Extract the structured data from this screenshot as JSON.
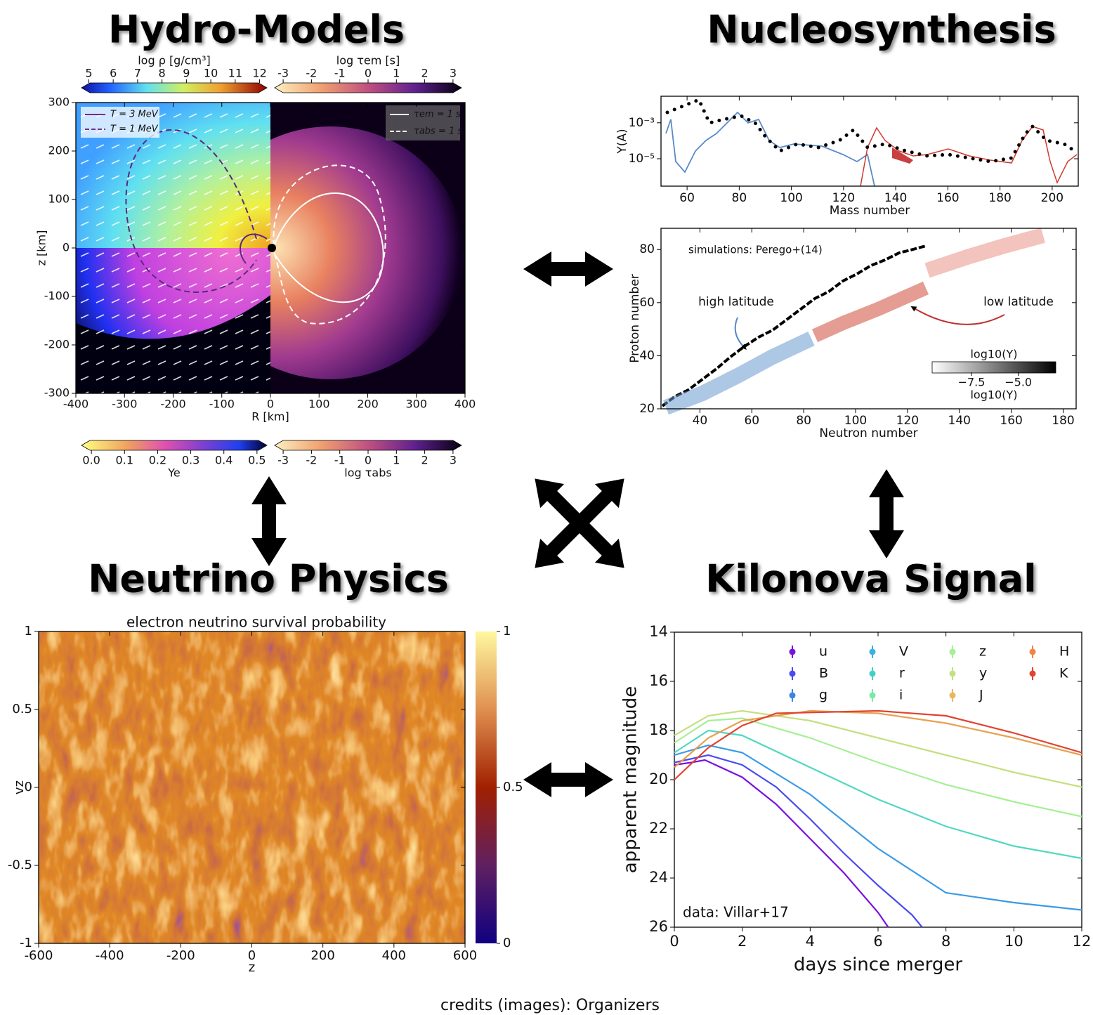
{
  "headings": {
    "hydro": "Hydro-Models",
    "nucleo": "Nucleosynthesis",
    "neutrino": "Neutrino Physics",
    "kilonova": "Kilonova Signal"
  },
  "credits": "credits (images): Organizers",
  "hydro": {
    "xlabel": "R [km]",
    "ylabel": "z [km]",
    "xlim": [
      -400,
      400
    ],
    "xticks": [
      -400,
      -300,
      -200,
      -100,
      0,
      100,
      200,
      300,
      400
    ],
    "ylim": [
      -300,
      300
    ],
    "yticks": [
      -300,
      -200,
      -100,
      0,
      100,
      200,
      300
    ],
    "legend": [
      "T = 3 MeV",
      "T = 1 MeV"
    ],
    "legend2": [
      "τem = 1 s",
      "τabs = 1 s"
    ],
    "colorbars": [
      {
        "label": "log ρ [g/cm³]",
        "lim": [
          4.7,
          12.3
        ],
        "ticks": [
          5,
          6,
          7,
          8,
          9,
          10,
          11,
          12
        ]
      },
      {
        "label": "log τem [s]",
        "lim": [
          -3.3,
          3.3
        ],
        "ticks": [
          -3,
          -2,
          -1,
          0,
          1,
          2,
          3
        ]
      },
      {
        "label": "Ye",
        "lim": [
          -0.03,
          0.53
        ],
        "ticks": [
          {
            "value": 0,
            "label": "0.0"
          },
          0.1,
          0.2,
          0.3,
          0.4,
          0.5
        ]
      },
      {
        "label": "log τabs",
        "lim": [
          -3.3,
          3.3
        ],
        "ticks": [
          -3,
          -2,
          -1,
          0,
          1,
          2,
          3
        ]
      }
    ]
  },
  "nucleo_top": {
    "xlabel": "Mass number",
    "ylabel": "Y(A)",
    "xlim": [
      50,
      210
    ],
    "xticks": [
      60,
      80,
      100,
      120,
      140,
      160,
      180,
      200
    ],
    "ylim": [
      3e-07,
      0.03
    ],
    "ylog": true,
    "yticks": [
      {
        "value": 0.001,
        "label": "10⁻³"
      },
      {
        "value": 1e-05,
        "label": "10⁻⁵"
      }
    ]
  },
  "nucleo_bottom": {
    "xlabel": "Neutron number",
    "ylabel": "Proton number",
    "xlim": [
      25,
      185
    ],
    "xticks": [
      40,
      60,
      80,
      100,
      120,
      140,
      160,
      180
    ],
    "ylim": [
      20,
      88
    ],
    "yticks": [
      20,
      40,
      60,
      80
    ],
    "annotations": [
      "simulations: Perego+(14)",
      "high latitude",
      "low latitude"
    ],
    "colorbar": {
      "label": "log10(Y)",
      "lim": [
        -9.6,
        -3
      ],
      "ticks": [
        {
          "value": -7.5,
          "label": "−7.5"
        },
        {
          "value": -5,
          "label": "−5.0"
        }
      ]
    }
  },
  "neutrino": {
    "title": "electron neutrino survival probability",
    "xlabel": "z",
    "ylabel": "vz",
    "xlim": [
      -600,
      600
    ],
    "xticks": [
      -600,
      -400,
      -200,
      0,
      200,
      400,
      600
    ],
    "ylim": [
      -1,
      1
    ],
    "yticks": [
      -1,
      -0.5,
      0,
      0.5,
      1
    ],
    "colorbar": {
      "lim": [
        0,
        1
      ],
      "ticks": [
        0,
        0.5,
        1
      ]
    }
  },
  "kilonova": {
    "xlabel": "days since merger",
    "ylabel": "apparent magnitude",
    "xlim": [
      0,
      12
    ],
    "xticks": [
      0,
      2,
      4,
      6,
      8,
      10,
      12
    ],
    "ylim": [
      26,
      14
    ],
    "yticks": [
      14,
      16,
      18,
      20,
      22,
      24,
      26
    ],
    "annotation": "data: Villar+17",
    "legend": [
      {
        "name": "u",
        "color": "#7a10e0"
      },
      {
        "name": "B",
        "color": "#4a4af0"
      },
      {
        "name": "g",
        "color": "#3a86e6"
      },
      {
        "name": "V",
        "color": "#3cb0e0"
      },
      {
        "name": "r",
        "color": "#44d0c8"
      },
      {
        "name": "i",
        "color": "#78eaa8"
      },
      {
        "name": "z",
        "color": "#a4f094"
      },
      {
        "name": "y",
        "color": "#c4e080"
      },
      {
        "name": "J",
        "color": "#e8b860"
      },
      {
        "name": "H",
        "color": "#f08444"
      },
      {
        "name": "K",
        "color": "#e04430"
      }
    ],
    "curves": [
      {
        "color": "#7a10e0",
        "x": [
          0,
          0.5,
          0.9,
          2,
          3,
          4,
          5,
          6,
          6.3
        ],
        "values": [
          19.4,
          19.3,
          19.2,
          19.9,
          21,
          22.4,
          23.8,
          25.4,
          26
        ]
      },
      {
        "color": "#4a4af0",
        "x": [
          0,
          1,
          2,
          3,
          4,
          5,
          6,
          7,
          7.3
        ],
        "values": [
          19.3,
          19,
          19.4,
          20.3,
          21.6,
          23,
          24.3,
          25.5,
          26
        ]
      },
      {
        "color": "#3a9ae6",
        "x": [
          0,
          1,
          2,
          4,
          6,
          8,
          10,
          12
        ],
        "values": [
          19,
          18.6,
          18.9,
          20.6,
          22.8,
          24.6,
          25,
          25.3
        ]
      },
      {
        "color": "#50d8c0",
        "x": [
          0,
          1,
          2,
          4,
          6,
          8,
          10,
          12
        ],
        "values": [
          18.9,
          18,
          18.2,
          19.5,
          20.8,
          21.9,
          22.7,
          23.2
        ]
      },
      {
        "color": "#a4f094",
        "x": [
          0,
          1,
          2,
          4,
          6,
          8,
          10,
          12
        ],
        "values": [
          18.5,
          17.6,
          17.5,
          18.3,
          19.3,
          20.2,
          20.9,
          21.5
        ]
      },
      {
        "color": "#c4e080",
        "x": [
          0,
          1,
          2,
          4,
          6,
          8,
          10,
          12
        ],
        "values": [
          18.2,
          17.4,
          17.2,
          17.6,
          18.3,
          19,
          19.7,
          20.3
        ]
      },
      {
        "color": "#e8a050",
        "x": [
          0,
          1,
          2,
          4,
          6,
          8,
          10,
          12
        ],
        "values": [
          19.5,
          18.3,
          17.6,
          17.2,
          17.3,
          17.7,
          18.3,
          19
        ]
      },
      {
        "color": "#e04430",
        "x": [
          0,
          1,
          2,
          3,
          6,
          8,
          10,
          12
        ],
        "values": [
          20,
          18.7,
          17.8,
          17.3,
          17.2,
          17.4,
          18.1,
          18.9
        ]
      }
    ]
  }
}
